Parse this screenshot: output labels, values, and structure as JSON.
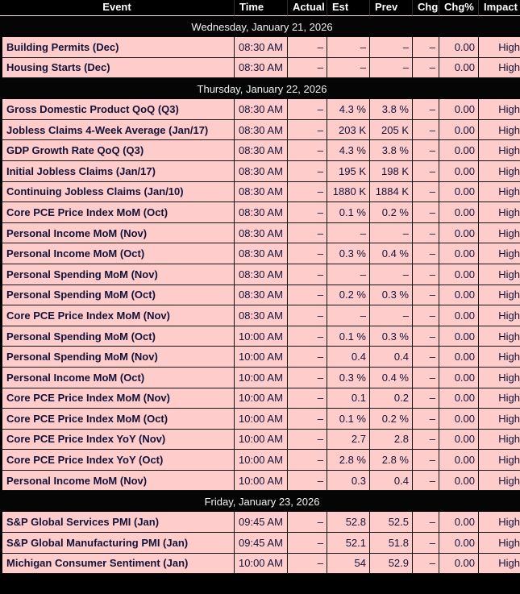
{
  "header": {
    "columns": [
      "Event",
      "Time",
      "Actual",
      "Est",
      "Prev",
      "Chg",
      "Chg%",
      "Impact"
    ]
  },
  "calendar": {
    "groups": [
      {
        "date": "Wednesday, January 21, 2026",
        "rows": [
          {
            "event": "Building Permits (Dec)",
            "time": "08:30 AM",
            "actual": "–",
            "est": "–",
            "prev": "–",
            "chg": "–",
            "chg_pct": "0.00",
            "impact": "High"
          },
          {
            "event": "Housing Starts (Dec)",
            "time": "08:30 AM",
            "actual": "–",
            "est": "–",
            "prev": "–",
            "chg": "–",
            "chg_pct": "0.00",
            "impact": "High"
          }
        ]
      },
      {
        "date": "Thursday, January 22, 2026",
        "rows": [
          {
            "event": "Gross Domestic Product QoQ (Q3)",
            "time": "08:30 AM",
            "actual": "–",
            "est": "4.3 %",
            "prev": "3.8 %",
            "chg": "–",
            "chg_pct": "0.00",
            "impact": "High"
          },
          {
            "event": "Jobless Claims 4-Week Average (Jan/17)",
            "time": "08:30 AM",
            "actual": "–",
            "est": "203 K",
            "prev": "205 K",
            "chg": "–",
            "chg_pct": "0.00",
            "impact": "High"
          },
          {
            "event": "GDP Growth Rate QoQ (Q3)",
            "time": "08:30 AM",
            "actual": "–",
            "est": "4.3 %",
            "prev": "3.8 %",
            "chg": "–",
            "chg_pct": "0.00",
            "impact": "High"
          },
          {
            "event": "Initial Jobless Claims (Jan/17)",
            "time": "08:30 AM",
            "actual": "–",
            "est": "195 K",
            "prev": "198 K",
            "chg": "–",
            "chg_pct": "0.00",
            "impact": "High"
          },
          {
            "event": "Continuing Jobless Claims (Jan/10)",
            "time": "08:30 AM",
            "actual": "–",
            "est": "1880 K",
            "prev": "1884 K",
            "chg": "–",
            "chg_pct": "0.00",
            "impact": "High"
          },
          {
            "event": "Core PCE Price Index MoM (Oct)",
            "time": "08:30 AM",
            "actual": "–",
            "est": "0.1 %",
            "prev": "0.2 %",
            "chg": "–",
            "chg_pct": "0.00",
            "impact": "High"
          },
          {
            "event": "Personal Income MoM (Nov)",
            "time": "08:30 AM",
            "actual": "–",
            "est": "–",
            "prev": "–",
            "chg": "–",
            "chg_pct": "0.00",
            "impact": "High"
          },
          {
            "event": "Personal Income MoM (Oct)",
            "time": "08:30 AM",
            "actual": "–",
            "est": "0.3 %",
            "prev": "0.4 %",
            "chg": "–",
            "chg_pct": "0.00",
            "impact": "High"
          },
          {
            "event": "Personal Spending MoM (Nov)",
            "time": "08:30 AM",
            "actual": "–",
            "est": "–",
            "prev": "–",
            "chg": "–",
            "chg_pct": "0.00",
            "impact": "High"
          },
          {
            "event": "Personal Spending MoM (Oct)",
            "time": "08:30 AM",
            "actual": "–",
            "est": "0.2 %",
            "prev": "0.3 %",
            "chg": "–",
            "chg_pct": "0.00",
            "impact": "High"
          },
          {
            "event": "Core PCE Price Index MoM (Nov)",
            "time": "08:30 AM",
            "actual": "–",
            "est": "–",
            "prev": "–",
            "chg": "–",
            "chg_pct": "0.00",
            "impact": "High"
          },
          {
            "event": "Personal Spending MoM (Oct)",
            "time": "10:00 AM",
            "actual": "–",
            "est": "0.1 %",
            "prev": "0.3 %",
            "chg": "–",
            "chg_pct": "0.00",
            "impact": "High"
          },
          {
            "event": "Personal Spending MoM (Nov)",
            "time": "10:00 AM",
            "actual": "–",
            "est": "0.4",
            "prev": "0.4",
            "chg": "–",
            "chg_pct": "0.00",
            "impact": "High"
          },
          {
            "event": "Personal Income MoM (Oct)",
            "time": "10:00 AM",
            "actual": "–",
            "est": "0.3 %",
            "prev": "0.4 %",
            "chg": "–",
            "chg_pct": "0.00",
            "impact": "High"
          },
          {
            "event": "Core PCE Price Index MoM (Nov)",
            "time": "10:00 AM",
            "actual": "–",
            "est": "0.1",
            "prev": "0.2",
            "chg": "–",
            "chg_pct": "0.00",
            "impact": "High"
          },
          {
            "event": "Core PCE Price Index MoM (Oct)",
            "time": "10:00 AM",
            "actual": "–",
            "est": "0.1 %",
            "prev": "0.2 %",
            "chg": "–",
            "chg_pct": "0.00",
            "impact": "High"
          },
          {
            "event": "Core PCE Price Index YoY (Nov)",
            "time": "10:00 AM",
            "actual": "–",
            "est": "2.7",
            "prev": "2.8",
            "chg": "–",
            "chg_pct": "0.00",
            "impact": "High"
          },
          {
            "event": "Core PCE Price Index YoY (Oct)",
            "time": "10:00 AM",
            "actual": "–",
            "est": "2.8 %",
            "prev": "2.8 %",
            "chg": "–",
            "chg_pct": "0.00",
            "impact": "High"
          },
          {
            "event": "Personal Income MoM (Nov)",
            "time": "10:00 AM",
            "actual": "–",
            "est": "0.3",
            "prev": "0.4",
            "chg": "–",
            "chg_pct": "0.00",
            "impact": "High"
          }
        ]
      },
      {
        "date": "Friday, January 23, 2026",
        "rows": [
          {
            "event": "S&P Global Services PMI (Jan)",
            "time": "09:45 AM",
            "actual": "–",
            "est": "52.8",
            "prev": "52.5",
            "chg": "–",
            "chg_pct": "0.00",
            "impact": "High"
          },
          {
            "event": "S&P Global Manufacturing PMI (Jan)",
            "time": "09:45 AM",
            "actual": "–",
            "est": "52.1",
            "prev": "51.8",
            "chg": "–",
            "chg_pct": "0.00",
            "impact": "High"
          },
          {
            "event": "Michigan Consumer Sentiment (Jan)",
            "time": "10:00 AM",
            "actual": "–",
            "est": "54",
            "prev": "52.9",
            "chg": "–",
            "chg_pct": "0.00",
            "impact": "High"
          }
        ]
      }
    ]
  },
  "colors": {
    "row_background": "#ffcccc",
    "row_text": "#131338",
    "header_background": "#000000",
    "header_text": "#ffffff",
    "grid_line": "#141414",
    "header_separator": "#ffd9d9"
  }
}
